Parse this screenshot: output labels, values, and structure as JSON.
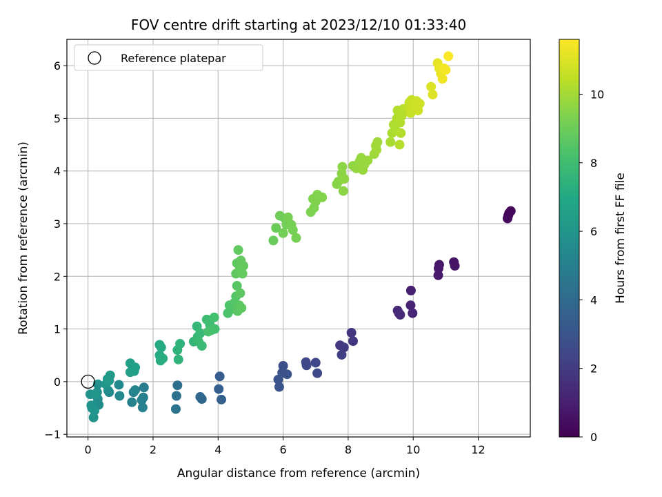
{
  "chart_data": {
    "type": "scatter",
    "title": "FOV centre drift starting at 2023/12/10 01:33:40",
    "xlabel": "Angular distance from reference (arcmin)",
    "ylabel": "Rotation from reference (arcmin)",
    "xlim": [
      -0.65,
      13.6
    ],
    "ylim": [
      -1.05,
      6.5
    ],
    "xticks": [
      0,
      2,
      4,
      6,
      8,
      10,
      12
    ],
    "yticks": [
      -1,
      0,
      1,
      2,
      3,
      4,
      5,
      6
    ],
    "grid": true,
    "legend": {
      "placement": "top-left",
      "entries": [
        {
          "label": "Reference platepar",
          "marker": "open-circle"
        }
      ]
    },
    "reference_point": {
      "x": 0,
      "y": 0
    },
    "colorbar": {
      "label": "Hours from first FF file",
      "min": 0,
      "max": 11.6,
      "ticks": [
        0,
        2,
        4,
        6,
        8,
        10
      ],
      "colormap": "viridis"
    },
    "points": [
      {
        "x": 12.92,
        "y": 3.15,
        "c": 0.1
      },
      {
        "x": 12.95,
        "y": 3.2,
        "c": 0.15
      },
      {
        "x": 13.0,
        "y": 3.24,
        "c": 0.2
      },
      {
        "x": 12.9,
        "y": 3.1,
        "c": 0.25
      },
      {
        "x": 11.25,
        "y": 2.27,
        "c": 0.6
      },
      {
        "x": 11.28,
        "y": 2.2,
        "c": 0.65
      },
      {
        "x": 10.8,
        "y": 2.22,
        "c": 0.7
      },
      {
        "x": 10.78,
        "y": 2.15,
        "c": 0.75
      },
      {
        "x": 10.77,
        "y": 2.02,
        "c": 0.8
      },
      {
        "x": 9.93,
        "y": 1.73,
        "c": 1.0
      },
      {
        "x": 9.92,
        "y": 1.45,
        "c": 1.1
      },
      {
        "x": 9.98,
        "y": 1.3,
        "c": 1.2
      },
      {
        "x": 9.52,
        "y": 1.35,
        "c": 1.3
      },
      {
        "x": 9.56,
        "y": 1.3,
        "c": 1.35
      },
      {
        "x": 9.6,
        "y": 1.27,
        "c": 1.4
      },
      {
        "x": 8.1,
        "y": 0.93,
        "c": 1.8
      },
      {
        "x": 8.15,
        "y": 0.77,
        "c": 1.85
      },
      {
        "x": 7.75,
        "y": 0.69,
        "c": 1.9
      },
      {
        "x": 7.87,
        "y": 0.65,
        "c": 2.0
      },
      {
        "x": 7.8,
        "y": 0.51,
        "c": 2.1
      },
      {
        "x": 6.7,
        "y": 0.37,
        "c": 2.4
      },
      {
        "x": 6.72,
        "y": 0.31,
        "c": 2.45
      },
      {
        "x": 7.0,
        "y": 0.36,
        "c": 2.5
      },
      {
        "x": 7.05,
        "y": 0.16,
        "c": 2.6
      },
      {
        "x": 6.0,
        "y": 0.3,
        "c": 2.8
      },
      {
        "x": 5.97,
        "y": 0.17,
        "c": 2.85
      },
      {
        "x": 6.12,
        "y": 0.14,
        "c": 2.9
      },
      {
        "x": 5.85,
        "y": 0.04,
        "c": 3.0
      },
      {
        "x": 5.88,
        "y": -0.1,
        "c": 3.05
      },
      {
        "x": 4.05,
        "y": 0.1,
        "c": 3.4
      },
      {
        "x": 4.02,
        "y": -0.14,
        "c": 3.5
      },
      {
        "x": 4.1,
        "y": -0.34,
        "c": 3.55
      },
      {
        "x": 3.45,
        "y": -0.29,
        "c": 3.8
      },
      {
        "x": 3.5,
        "y": -0.33,
        "c": 3.85
      },
      {
        "x": 2.75,
        "y": -0.07,
        "c": 4.2
      },
      {
        "x": 2.72,
        "y": -0.27,
        "c": 4.3
      },
      {
        "x": 2.7,
        "y": -0.52,
        "c": 4.4
      },
      {
        "x": 1.72,
        "y": -0.11,
        "c": 4.9
      },
      {
        "x": 1.7,
        "y": -0.3,
        "c": 4.95
      },
      {
        "x": 1.65,
        "y": -0.35,
        "c": 5.0
      },
      {
        "x": 1.68,
        "y": -0.49,
        "c": 5.05
      },
      {
        "x": 1.35,
        "y": -0.39,
        "c": 5.1
      },
      {
        "x": 1.4,
        "y": -0.2,
        "c": 5.15
      },
      {
        "x": 1.45,
        "y": -0.16,
        "c": 5.2
      },
      {
        "x": 0.95,
        "y": -0.06,
        "c": 5.4
      },
      {
        "x": 0.97,
        "y": -0.27,
        "c": 5.45
      },
      {
        "x": 0.65,
        "y": -0.2,
        "c": 5.5
      },
      {
        "x": 0.62,
        "y": -0.17,
        "c": 5.55
      },
      {
        "x": 0.33,
        "y": -0.44,
        "c": 5.6
      },
      {
        "x": 0.3,
        "y": -0.33,
        "c": 5.65
      },
      {
        "x": 0.28,
        "y": -0.2,
        "c": 5.7
      },
      {
        "x": 0.3,
        "y": -0.05,
        "c": 5.75
      },
      {
        "x": 0.07,
        "y": -0.24,
        "c": 5.8
      },
      {
        "x": 0.12,
        "y": -0.5,
        "c": 5.85
      },
      {
        "x": 0.17,
        "y": -0.68,
        "c": 5.9
      },
      {
        "x": 0.2,
        "y": -0.55,
        "c": 5.95
      },
      {
        "x": 0.1,
        "y": -0.45,
        "c": 6.0
      },
      {
        "x": 0.22,
        "y": -0.24,
        "c": 6.05
      },
      {
        "x": 0.55,
        "y": -0.05,
        "c": 6.1
      },
      {
        "x": 0.6,
        "y": 0.05,
        "c": 6.15
      },
      {
        "x": 0.68,
        "y": 0.12,
        "c": 6.2
      },
      {
        "x": 0.65,
        "y": 0.02,
        "c": 6.25
      },
      {
        "x": 1.3,
        "y": 0.35,
        "c": 6.4
      },
      {
        "x": 1.3,
        "y": 0.18,
        "c": 6.45
      },
      {
        "x": 1.45,
        "y": 0.27,
        "c": 6.5
      },
      {
        "x": 1.42,
        "y": 0.2,
        "c": 6.55
      },
      {
        "x": 2.2,
        "y": 0.7,
        "c": 7.0
      },
      {
        "x": 2.25,
        "y": 0.65,
        "c": 7.05
      },
      {
        "x": 2.2,
        "y": 0.5,
        "c": 7.1
      },
      {
        "x": 2.23,
        "y": 0.4,
        "c": 7.15
      },
      {
        "x": 2.3,
        "y": 0.44,
        "c": 7.2
      },
      {
        "x": 2.75,
        "y": 0.6,
        "c": 7.4
      },
      {
        "x": 2.83,
        "y": 0.72,
        "c": 7.45
      },
      {
        "x": 2.78,
        "y": 0.42,
        "c": 7.5
      },
      {
        "x": 3.25,
        "y": 0.76,
        "c": 7.6
      },
      {
        "x": 3.35,
        "y": 1.05,
        "c": 7.65
      },
      {
        "x": 3.37,
        "y": 0.85,
        "c": 7.7
      },
      {
        "x": 3.45,
        "y": 0.92,
        "c": 7.75
      },
      {
        "x": 3.5,
        "y": 0.68,
        "c": 7.8
      },
      {
        "x": 3.4,
        "y": 0.76,
        "c": 7.85
      },
      {
        "x": 3.65,
        "y": 1.18,
        "c": 7.95
      },
      {
        "x": 3.75,
        "y": 1.08,
        "c": 8.0
      },
      {
        "x": 3.8,
        "y": 0.98,
        "c": 8.05
      },
      {
        "x": 3.88,
        "y": 1.22,
        "c": 8.1
      },
      {
        "x": 3.9,
        "y": 1.0,
        "c": 8.15
      },
      {
        "x": 3.7,
        "y": 0.95,
        "c": 8.2
      },
      {
        "x": 4.3,
        "y": 1.3,
        "c": 8.3
      },
      {
        "x": 4.35,
        "y": 1.45,
        "c": 8.35
      },
      {
        "x": 4.45,
        "y": 1.38,
        "c": 8.4
      },
      {
        "x": 4.5,
        "y": 1.5,
        "c": 8.45
      },
      {
        "x": 4.55,
        "y": 1.62,
        "c": 8.5
      },
      {
        "x": 4.58,
        "y": 1.82,
        "c": 8.55
      },
      {
        "x": 4.6,
        "y": 1.34,
        "c": 8.6
      },
      {
        "x": 4.65,
        "y": 1.45,
        "c": 8.62
      },
      {
        "x": 4.68,
        "y": 1.68,
        "c": 8.64
      },
      {
        "x": 4.72,
        "y": 1.4,
        "c": 8.66
      },
      {
        "x": 4.55,
        "y": 2.05,
        "c": 8.7
      },
      {
        "x": 4.58,
        "y": 2.25,
        "c": 8.72
      },
      {
        "x": 4.62,
        "y": 2.5,
        "c": 8.74
      },
      {
        "x": 4.67,
        "y": 2.15,
        "c": 8.76
      },
      {
        "x": 4.7,
        "y": 2.3,
        "c": 8.78
      },
      {
        "x": 4.78,
        "y": 2.2,
        "c": 8.8
      },
      {
        "x": 4.75,
        "y": 2.05,
        "c": 8.82
      },
      {
        "x": 5.7,
        "y": 2.68,
        "c": 8.9
      },
      {
        "x": 5.78,
        "y": 2.92,
        "c": 8.95
      },
      {
        "x": 5.9,
        "y": 3.15,
        "c": 9.0
      },
      {
        "x": 6.05,
        "y": 3.1,
        "c": 9.05
      },
      {
        "x": 6.1,
        "y": 2.98,
        "c": 9.1
      },
      {
        "x": 6.0,
        "y": 2.82,
        "c": 9.12
      },
      {
        "x": 6.25,
        "y": 2.98,
        "c": 9.15
      },
      {
        "x": 6.3,
        "y": 2.88,
        "c": 9.18
      },
      {
        "x": 6.4,
        "y": 2.73,
        "c": 9.2
      },
      {
        "x": 6.15,
        "y": 3.12,
        "c": 9.22
      },
      {
        "x": 6.85,
        "y": 3.22,
        "c": 9.3
      },
      {
        "x": 6.95,
        "y": 3.3,
        "c": 9.33
      },
      {
        "x": 7.0,
        "y": 3.42,
        "c": 9.36
      },
      {
        "x": 6.92,
        "y": 3.47,
        "c": 9.38
      },
      {
        "x": 7.05,
        "y": 3.55,
        "c": 9.4
      },
      {
        "x": 7.2,
        "y": 3.5,
        "c": 9.42
      },
      {
        "x": 7.65,
        "y": 3.75,
        "c": 9.5
      },
      {
        "x": 7.7,
        "y": 3.8,
        "c": 9.53
      },
      {
        "x": 7.8,
        "y": 3.95,
        "c": 9.56
      },
      {
        "x": 7.85,
        "y": 3.62,
        "c": 9.58
      },
      {
        "x": 7.82,
        "y": 4.08,
        "c": 9.6
      },
      {
        "x": 7.88,
        "y": 3.85,
        "c": 9.62
      },
      {
        "x": 8.15,
        "y": 4.1,
        "c": 9.7
      },
      {
        "x": 8.25,
        "y": 4.05,
        "c": 9.72
      },
      {
        "x": 8.35,
        "y": 4.18,
        "c": 9.74
      },
      {
        "x": 8.4,
        "y": 4.25,
        "c": 9.76
      },
      {
        "x": 8.45,
        "y": 4.02,
        "c": 9.78
      },
      {
        "x": 8.5,
        "y": 4.12,
        "c": 9.8
      },
      {
        "x": 8.6,
        "y": 4.2,
        "c": 9.82
      },
      {
        "x": 8.8,
        "y": 4.32,
        "c": 9.9
      },
      {
        "x": 8.85,
        "y": 4.48,
        "c": 9.92
      },
      {
        "x": 8.9,
        "y": 4.55,
        "c": 9.94
      },
      {
        "x": 8.87,
        "y": 4.4,
        "c": 9.96
      },
      {
        "x": 9.3,
        "y": 4.55,
        "c": 10.1
      },
      {
        "x": 9.35,
        "y": 4.72,
        "c": 10.13
      },
      {
        "x": 9.4,
        "y": 4.88,
        "c": 10.16
      },
      {
        "x": 9.45,
        "y": 4.78,
        "c": 10.18
      },
      {
        "x": 9.5,
        "y": 5.0,
        "c": 10.2
      },
      {
        "x": 9.52,
        "y": 5.15,
        "c": 10.22
      },
      {
        "x": 9.6,
        "y": 4.92,
        "c": 10.24
      },
      {
        "x": 9.62,
        "y": 4.72,
        "c": 10.26
      },
      {
        "x": 9.58,
        "y": 4.5,
        "c": 10.28
      },
      {
        "x": 9.65,
        "y": 5.05,
        "c": 10.3
      },
      {
        "x": 9.7,
        "y": 5.18,
        "c": 10.32
      },
      {
        "x": 9.85,
        "y": 5.22,
        "c": 10.5
      },
      {
        "x": 9.88,
        "y": 5.3,
        "c": 10.55
      },
      {
        "x": 9.92,
        "y": 5.1,
        "c": 10.6
      },
      {
        "x": 9.95,
        "y": 5.35,
        "c": 10.62
      },
      {
        "x": 10.0,
        "y": 5.18,
        "c": 10.65
      },
      {
        "x": 10.05,
        "y": 5.25,
        "c": 10.68
      },
      {
        "x": 10.1,
        "y": 5.33,
        "c": 10.7
      },
      {
        "x": 10.15,
        "y": 5.15,
        "c": 10.72
      },
      {
        "x": 10.2,
        "y": 5.28,
        "c": 10.74
      },
      {
        "x": 10.55,
        "y": 5.6,
        "c": 11.0
      },
      {
        "x": 10.6,
        "y": 5.45,
        "c": 11.05
      },
      {
        "x": 10.75,
        "y": 6.05,
        "c": 11.2
      },
      {
        "x": 10.8,
        "y": 5.95,
        "c": 11.25
      },
      {
        "x": 10.85,
        "y": 5.85,
        "c": 11.3
      },
      {
        "x": 10.9,
        "y": 5.75,
        "c": 11.35
      },
      {
        "x": 10.95,
        "y": 5.95,
        "c": 11.4
      },
      {
        "x": 11.0,
        "y": 5.92,
        "c": 11.45
      },
      {
        "x": 11.08,
        "y": 6.18,
        "c": 11.55
      }
    ]
  }
}
